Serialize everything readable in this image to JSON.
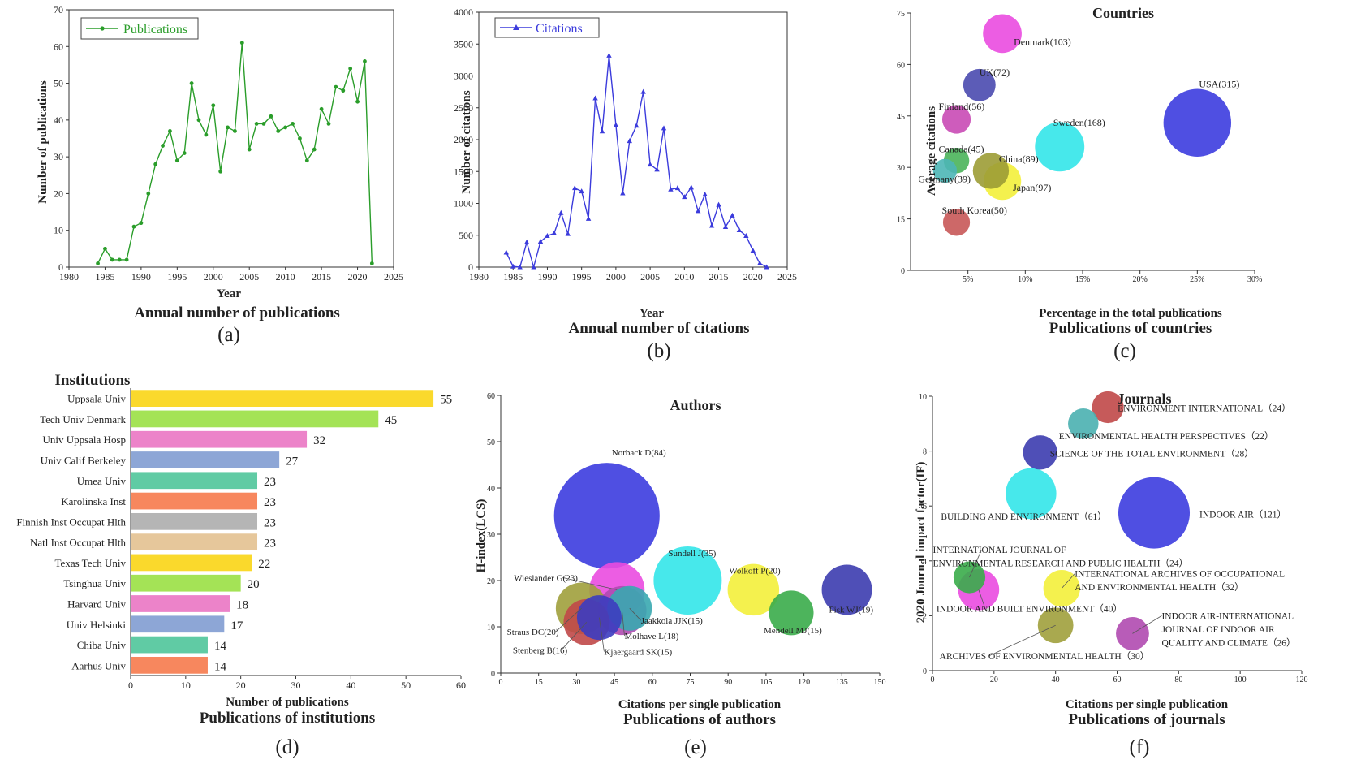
{
  "colors": {
    "green": "#2a9d2a",
    "blue": "#3b3bdc",
    "axis": "#333333"
  },
  "chart_data": [
    {
      "id": "a",
      "type": "line",
      "panel_label": "(a)",
      "title": "Annual number of publications",
      "legend": "Publications",
      "xlabel": "Year",
      "ylabel": "Number of publications",
      "xlim": [
        1980,
        2025
      ],
      "ylim": [
        0,
        70
      ],
      "xticks": [
        1980,
        1985,
        1990,
        1995,
        2000,
        2005,
        2010,
        2015,
        2020,
        2025
      ],
      "yticks": [
        0,
        10,
        20,
        30,
        40,
        50,
        60,
        70
      ],
      "color": "#2a9d2a",
      "marker": "circle",
      "x": [
        1984,
        1985,
        1986,
        1987,
        1988,
        1989,
        1990,
        1991,
        1992,
        1993,
        1994,
        1995,
        1996,
        1997,
        1998,
        1999,
        2000,
        2001,
        2002,
        2003,
        2004,
        2005,
        2006,
        2007,
        2008,
        2009,
        2010,
        2011,
        2012,
        2013,
        2014,
        2015,
        2016,
        2017,
        2018,
        2019,
        2020,
        2021,
        2022
      ],
      "y": [
        1,
        5,
        2,
        2,
        2,
        11,
        12,
        20,
        28,
        33,
        37,
        29,
        31,
        50,
        40,
        36,
        44,
        26,
        38,
        37,
        61,
        32,
        39,
        39,
        41,
        37,
        38,
        39,
        35,
        29,
        32,
        43,
        39,
        49,
        48,
        54,
        45,
        56,
        1
      ]
    },
    {
      "id": "b",
      "type": "line",
      "panel_label": "(b)",
      "title": "Annual number of citations",
      "legend": "Citations",
      "xlabel": "Year",
      "ylabel": "Number of citations",
      "xlim": [
        1980,
        2025
      ],
      "ylim": [
        0,
        4000
      ],
      "xticks": [
        1980,
        1985,
        1990,
        1995,
        2000,
        2005,
        2010,
        2015,
        2020,
        2025
      ],
      "yticks": [
        0,
        500,
        1000,
        1500,
        2000,
        2500,
        3000,
        3500,
        4000
      ],
      "color": "#3b3bdc",
      "marker": "triangle",
      "x": [
        1984,
        1985,
        1986,
        1987,
        1988,
        1989,
        1990,
        1991,
        1992,
        1993,
        1994,
        1995,
        1996,
        1997,
        1998,
        1999,
        2000,
        2001,
        2002,
        2003,
        2004,
        2005,
        2006,
        2007,
        2008,
        2009,
        2010,
        2011,
        2012,
        2013,
        2014,
        2015,
        2016,
        2017,
        2018,
        2019,
        2020,
        2021,
        2022
      ],
      "y": [
        230,
        10,
        0,
        390,
        0,
        400,
        490,
        530,
        850,
        520,
        1240,
        1190,
        760,
        2650,
        2130,
        3320,
        2230,
        1160,
        1980,
        2220,
        2750,
        1610,
        1530,
        2180,
        1220,
        1240,
        1100,
        1250,
        880,
        1140,
        650,
        980,
        630,
        810,
        580,
        490,
        260,
        60,
        0
      ]
    },
    {
      "id": "c",
      "type": "scatter",
      "panel_label": "(c)",
      "title": "Publications of countries",
      "chart_heading": "Countries",
      "xlabel": "Percentage in the total publications",
      "ylabel": "Average citations",
      "xlim": [
        0,
        30
      ],
      "ylim": [
        0,
        75
      ],
      "xticks": [
        5,
        10,
        15,
        20,
        25,
        30
      ],
      "yticks": [
        0,
        15,
        30,
        45,
        60,
        75
      ],
      "xsuffix": "%",
      "points": [
        {
          "label": "Denmark(103)",
          "x": 8,
          "y": 69,
          "size": 103,
          "color": "#ea4be0"
        },
        {
          "label": "UK(72)",
          "x": 6,
          "y": 54,
          "size": 72,
          "color": "#4a4aaf"
        },
        {
          "label": "USA(315)",
          "x": 25,
          "y": 43,
          "size": 315,
          "color": "#3c3cdf"
        },
        {
          "label": "Finland(56)",
          "x": 4,
          "y": 44,
          "size": 56,
          "color": "#c94ab5"
        },
        {
          "label": "Sweden(168)",
          "x": 13,
          "y": 36,
          "size": 168,
          "color": "#33e6e9"
        },
        {
          "label": "Canada(45)",
          "x": 4,
          "y": 32,
          "size": 45,
          "color": "#4ab45a"
        },
        {
          "label": "China(89)",
          "x": 7,
          "y": 29,
          "size": 89,
          "color": "#9c9c35"
        },
        {
          "label": "Germany(39)",
          "x": 3,
          "y": 29,
          "size": 39,
          "color": "#4cb6b6"
        },
        {
          "label": "Japan(97)",
          "x": 8,
          "y": 26,
          "size": 97,
          "color": "#f3ef3b"
        },
        {
          "label": "South Korea(50)",
          "x": 4,
          "y": 14,
          "size": 50,
          "color": "#c85858"
        }
      ]
    },
    {
      "id": "d",
      "type": "bar",
      "orientation": "horizontal",
      "panel_label": "(d)",
      "title": "Publications of institutions",
      "chart_heading": "Institutions",
      "xlabel": "Number of publications",
      "xlim": [
        0,
        60
      ],
      "xticks": [
        0,
        10,
        20,
        30,
        40,
        50,
        60
      ],
      "categories": [
        "Uppsala Univ",
        "Tech Univ Denmark",
        "Univ Uppsala Hosp",
        "Univ Calif Berkeley",
        "Umea Univ",
        "Karolinska Inst",
        "Finnish Inst Occupat Hlth",
        "Natl Inst Occupat Hlth",
        "Texas Tech Univ",
        "Tsinghua Univ",
        "Harvard Univ",
        "Univ Helsinki",
        "Chiba Univ",
        "Aarhus Univ"
      ],
      "values": [
        55,
        45,
        32,
        27,
        23,
        23,
        23,
        23,
        22,
        20,
        18,
        17,
        14,
        14
      ],
      "bar_colors": [
        "#fad92c",
        "#a4e356",
        "#ec83c9",
        "#8da6d6",
        "#60cba4",
        "#f7875e",
        "#b5b5b5",
        "#e6c79b",
        "#fad92c",
        "#a4e356",
        "#ec83c9",
        "#8da6d6",
        "#60cba4",
        "#f7875e"
      ]
    },
    {
      "id": "e",
      "type": "scatter",
      "panel_label": "(e)",
      "title": "Publications of authors",
      "chart_heading": "Authors",
      "xlabel": "Citations per single publication",
      "ylabel": "H-index(LCS)",
      "xlim": [
        0,
        150
      ],
      "ylim": [
        0,
        60
      ],
      "xticks": [
        0,
        15,
        30,
        45,
        60,
        75,
        90,
        105,
        120,
        135,
        150
      ],
      "yticks": [
        0,
        10,
        20,
        30,
        40,
        50,
        60
      ],
      "points": [
        {
          "label": "Norback D(84)",
          "x": 42,
          "y": 34,
          "size": 84,
          "color": "#3c3cdf"
        },
        {
          "label": "Sundell J(35)",
          "x": 74,
          "y": 20,
          "size": 35,
          "color": "#33e6e9"
        },
        {
          "label": "Wolkoff P(20)",
          "x": 100,
          "y": 18,
          "size": 20,
          "color": "#f3ef3b"
        },
        {
          "label": "Fisk WJ(19)",
          "x": 137,
          "y": 18,
          "size": 19,
          "color": "#3c3caf"
        },
        {
          "label": "Mendell MJ(15)",
          "x": 115,
          "y": 13,
          "size": 15,
          "color": "#3aac4a"
        },
        {
          "label": "Wieslander G(23)",
          "x": 46,
          "y": 18,
          "size": 23,
          "color": "#ea4be0"
        },
        {
          "label": "Straus DC(20)",
          "x": 32,
          "y": 14,
          "size": 20,
          "color": "#a0a03c"
        },
        {
          "label": "Jaakkola JJK(15)",
          "x": 51,
          "y": 14,
          "size": 15,
          "color": "#38a8b0"
        },
        {
          "label": "Molhave L(18)",
          "x": 48,
          "y": 13.5,
          "size": 18,
          "color": "#b04ab0"
        },
        {
          "label": "Stenberg B(16)",
          "x": 34,
          "y": 11,
          "size": 16,
          "color": "#c04848"
        },
        {
          "label": "Kjaergaard SK(15)",
          "x": 39,
          "y": 12,
          "size": 15,
          "color": "#3c3cc0"
        }
      ]
    },
    {
      "id": "f",
      "type": "scatter",
      "panel_label": "(f)",
      "title": "Publications of journals",
      "chart_heading": "Journals",
      "xlabel": "Citations per single publication",
      "ylabel": "2020 Journal impact factor(IF)",
      "xlim": [
        0,
        120
      ],
      "ylim": [
        0,
        10
      ],
      "xticks": [
        0,
        20,
        40,
        60,
        80,
        100,
        120
      ],
      "yticks": [
        0,
        2,
        4,
        6,
        8,
        10
      ],
      "points": [
        {
          "label": "ENVIRONMENT INTERNATIONAL（24）",
          "x": 57,
          "y": 9.6,
          "size": 24,
          "color": "#c04848"
        },
        {
          "label": "ENVIRONMENTAL HEALTH PERSPECTIVES（22）",
          "x": 49,
          "y": 9.0,
          "size": 22,
          "color": "#4ab0b0"
        },
        {
          "label": "SCIENCE OF THE TOTAL ENVIRONMENT（28）",
          "x": 35,
          "y": 7.95,
          "size": 28,
          "color": "#3c3caf"
        },
        {
          "label": "BUILDING AND ENVIRONMENT（61）",
          "x": 32,
          "y": 6.45,
          "size": 61,
          "color": "#33e6e9"
        },
        {
          "label": "INDOOR AIR（121）",
          "x": 72,
          "y": 5.75,
          "size": 121,
          "color": "#3c3cdf"
        },
        {
          "label": "INTERNATIONAL JOURNAL OF ENVIRONMENTAL RESEARCH AND PUBLIC HEALTH（24）",
          "x": 12,
          "y": 3.4,
          "size": 24,
          "color": "#3aac4a"
        },
        {
          "label": "INDOOR AND BUILT ENVIRONMENT（40）",
          "x": 15,
          "y": 2.95,
          "size": 40,
          "color": "#ea4be0"
        },
        {
          "label": "INTERNATIONAL ARCHIVES OF OCCUPATIONAL AND ENVIRONMENTAL HEALTH（32）",
          "x": 42,
          "y": 3.0,
          "size": 32,
          "color": "#f3ef3b"
        },
        {
          "label": "ARCHIVES OF ENVIRONMENTAL HEALTH（30）",
          "x": 40,
          "y": 1.65,
          "size": 30,
          "color": "#a0a03c"
        },
        {
          "label": "INDOOR AIR-INTERNATIONAL JOURNAL OF INDOOR AIR QUALITY AND CLIMATE（26）",
          "x": 65,
          "y": 1.35,
          "size": 26,
          "color": "#b04ab0"
        }
      ]
    }
  ]
}
